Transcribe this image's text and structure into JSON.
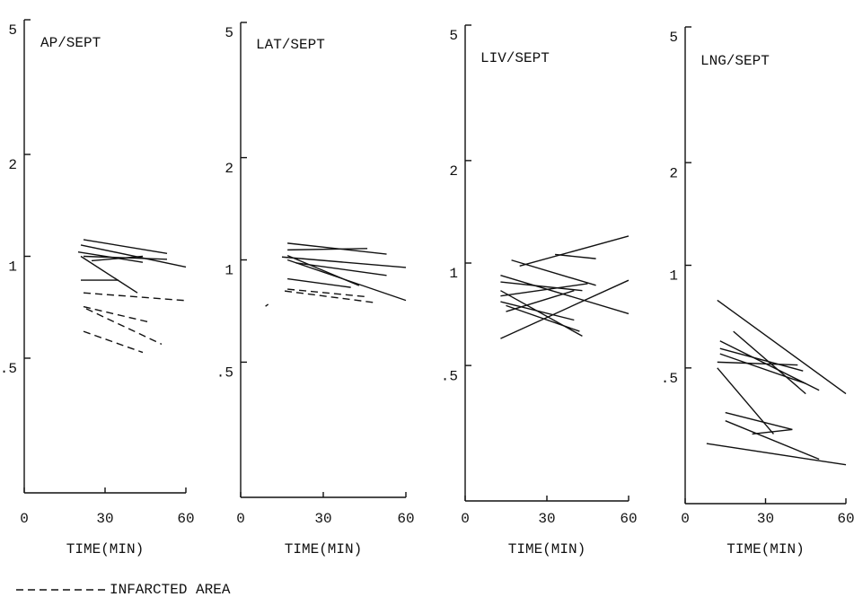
{
  "chart_data": [
    {
      "type": "line",
      "title": "AP/SEPT",
      "x_label": "TIME(MIN)",
      "log_y": true,
      "color": "#111111",
      "xlim": [
        0,
        60
      ],
      "xticks": [
        0,
        30,
        60
      ],
      "ylim": [
        0.2,
        5
      ],
      "yticks": [
        5,
        2,
        1,
        {
          "value": 0.5,
          "label": ".5"
        }
      ],
      "segments": [
        {
          "x": [
            22,
            53
          ],
          "values": [
            1.12,
            1.02
          ],
          "dashed": false
        },
        {
          "x": [
            21,
            60
          ],
          "values": [
            1.08,
            0.93
          ],
          "dashed": false
        },
        {
          "x": [
            20,
            44
          ],
          "values": [
            1.03,
            0.96
          ],
          "dashed": false
        },
        {
          "x": [
            22,
            53
          ],
          "values": [
            1.0,
            0.98
          ],
          "dashed": false
        },
        {
          "x": [
            25,
            44
          ],
          "values": [
            0.97,
            1.0
          ],
          "dashed": false
        },
        {
          "x": [
            21,
            42
          ],
          "values": [
            1.0,
            0.78
          ],
          "dashed": false
        },
        {
          "x": [
            21,
            35
          ],
          "values": [
            0.85,
            0.85
          ],
          "dashed": false
        },
        {
          "x": [
            22,
            60
          ],
          "values": [
            0.78,
            0.74
          ],
          "dashed": true
        },
        {
          "x": [
            22,
            46
          ],
          "values": [
            0.71,
            0.64
          ],
          "dashed": true
        },
        {
          "x": [
            23,
            51
          ],
          "values": [
            0.7,
            0.55
          ],
          "dashed": true
        },
        {
          "x": [
            22,
            44
          ],
          "values": [
            0.6,
            0.52
          ],
          "dashed": true
        }
      ]
    },
    {
      "type": "line",
      "title": "LAT/SEPT",
      "x_label": "TIME(MIN)",
      "log_y": true,
      "color": "#111111",
      "xlim": [
        0,
        60
      ],
      "xticks": [
        0,
        30,
        60
      ],
      "ylim": [
        0.2,
        5
      ],
      "yticks": [
        5,
        2,
        1,
        {
          "value": 0.5,
          "label": ".5"
        }
      ],
      "segments": [
        {
          "x": [
            17,
            53
          ],
          "values": [
            1.12,
            1.04
          ],
          "dashed": false
        },
        {
          "x": [
            17,
            46
          ],
          "values": [
            1.07,
            1.08
          ],
          "dashed": false
        },
        {
          "x": [
            15,
            60
          ],
          "values": [
            1.02,
            0.95
          ],
          "dashed": false
        },
        {
          "x": [
            17,
            60
          ],
          "values": [
            1.0,
            0.76
          ],
          "dashed": false
        },
        {
          "x": [
            17,
            40
          ],
          "values": [
            0.88,
            0.83
          ],
          "dashed": false
        },
        {
          "x": [
            17,
            43
          ],
          "values": [
            1.03,
            0.84
          ],
          "dashed": false
        },
        {
          "x": [
            20,
            53
          ],
          "values": [
            0.98,
            0.9
          ],
          "dashed": false
        },
        {
          "x": [
            16,
            48
          ],
          "values": [
            0.81,
            0.75
          ],
          "dashed": true
        },
        {
          "x": [
            17,
            45
          ],
          "values": [
            0.82,
            0.78
          ],
          "dashed": true
        },
        {
          "x": [
            9,
            10
          ],
          "values": [
            0.73,
            0.74
          ],
          "dashed": false
        }
      ]
    },
    {
      "type": "line",
      "title": "LIV/SEPT",
      "x_label": "TIME(MIN)",
      "log_y": true,
      "color": "#111111",
      "xlim": [
        0,
        60
      ],
      "xticks": [
        0,
        30,
        60
      ],
      "ylim": [
        0.2,
        5
      ],
      "yticks": [
        5,
        2,
        1,
        {
          "value": 0.5,
          "label": ".5"
        }
      ],
      "segments": [
        {
          "x": [
            17,
            48
          ],
          "values": [
            1.02,
            0.86
          ],
          "dashed": false
        },
        {
          "x": [
            20,
            60
          ],
          "values": [
            0.98,
            1.2
          ],
          "dashed": false
        },
        {
          "x": [
            33,
            48
          ],
          "values": [
            1.06,
            1.03
          ],
          "dashed": false
        },
        {
          "x": [
            13,
            60
          ],
          "values": [
            0.92,
            0.71
          ],
          "dashed": false
        },
        {
          "x": [
            13,
            43
          ],
          "values": [
            0.88,
            0.83
          ],
          "dashed": false
        },
        {
          "x": [
            13,
            45
          ],
          "values": [
            0.8,
            0.87
          ],
          "dashed": false
        },
        {
          "x": [
            13,
            40
          ],
          "values": [
            0.77,
            0.68
          ],
          "dashed": false
        },
        {
          "x": [
            15,
            42
          ],
          "values": [
            0.75,
            0.63
          ],
          "dashed": false
        },
        {
          "x": [
            13,
            43
          ],
          "values": [
            0.83,
            0.61
          ],
          "dashed": false
        },
        {
          "x": [
            13,
            60
          ],
          "values": [
            0.6,
            0.89
          ],
          "dashed": false
        },
        {
          "x": [
            15,
            40
          ],
          "values": [
            0.72,
            0.83
          ],
          "dashed": false
        }
      ]
    },
    {
      "type": "line",
      "title": "LNG/SEPT",
      "x_label": "TIME(MIN)",
      "log_y": true,
      "color": "#111111",
      "xlim": [
        0,
        60
      ],
      "xticks": [
        0,
        30,
        60
      ],
      "ylim": [
        0.2,
        5
      ],
      "yticks": [
        5,
        2,
        1,
        {
          "value": 0.5,
          "label": ".5"
        }
      ],
      "segments": [
        {
          "x": [
            12,
            60
          ],
          "values": [
            0.79,
            0.42
          ],
          "dashed": false
        },
        {
          "x": [
            13,
            50
          ],
          "values": [
            0.6,
            0.43
          ],
          "dashed": false
        },
        {
          "x": [
            13,
            44
          ],
          "values": [
            0.57,
            0.49
          ],
          "dashed": false
        },
        {
          "x": [
            13,
            45
          ],
          "values": [
            0.55,
            0.45
          ],
          "dashed": false
        },
        {
          "x": [
            12,
            42
          ],
          "values": [
            0.52,
            0.51
          ],
          "dashed": false
        },
        {
          "x": [
            12,
            33
          ],
          "values": [
            0.5,
            0.32
          ],
          "dashed": false
        },
        {
          "x": [
            15,
            40
          ],
          "values": [
            0.37,
            0.33
          ],
          "dashed": false
        },
        {
          "x": [
            25,
            40
          ],
          "values": [
            0.32,
            0.33
          ],
          "dashed": false
        },
        {
          "x": [
            8,
            60
          ],
          "values": [
            0.3,
            0.26
          ],
          "dashed": false
        },
        {
          "x": [
            15,
            50
          ],
          "values": [
            0.35,
            0.27
          ],
          "dashed": false
        },
        {
          "x": [
            18,
            45
          ],
          "values": [
            0.64,
            0.42
          ],
          "dashed": false
        }
      ]
    }
  ],
  "legend": {
    "label": "INFARCTED AREA"
  }
}
